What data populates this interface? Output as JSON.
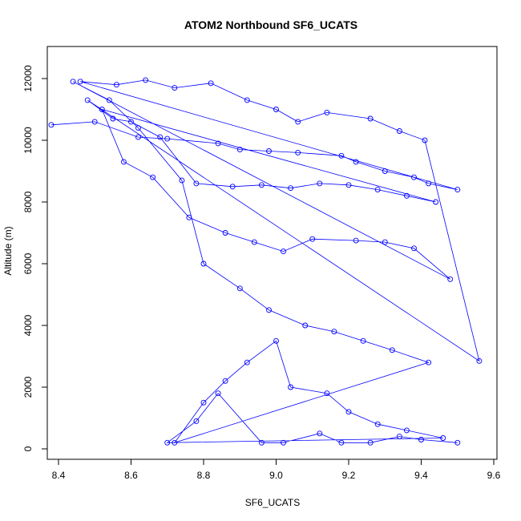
{
  "chart_data": {
    "type": "scatter",
    "title": "ATOM2 Northbound SF6_UCATS",
    "xlabel": "SF6_UCATS",
    "ylabel": "Altitude (m)",
    "xlim": [
      8.35,
      9.6
    ],
    "ylim": [
      0,
      12700
    ],
    "xticks": [
      8.4,
      8.6,
      8.8,
      9.0,
      9.2,
      9.4,
      9.6
    ],
    "xtick_labels": [
      "8.4",
      "8.6",
      "8.8",
      "9.0",
      "9.2",
      "9.4",
      "9.6"
    ],
    "yticks": [
      0,
      2000,
      4000,
      6000,
      8000,
      10000,
      12000
    ],
    "ytick_labels": [
      "0",
      "2000",
      "4000",
      "6000",
      "8000",
      "10000",
      "12000"
    ],
    "grid": false,
    "style": "points-connected",
    "color": "#0000ff",
    "series": [
      {
        "x": [
          8.38,
          8.5,
          8.62,
          8.7,
          8.84,
          8.9,
          8.98,
          9.06,
          9.18,
          9.22,
          9.3,
          9.38,
          9.42,
          9.5,
          8.46,
          8.56,
          8.64,
          8.72,
          8.82,
          8.92,
          9.0,
          9.06,
          9.14,
          9.26,
          9.34,
          9.41,
          9.56,
          8.48,
          8.55,
          8.6,
          8.68,
          8.78,
          8.88,
          8.96,
          9.04,
          9.12,
          9.2,
          9.28,
          9.36,
          9.44,
          8.52,
          8.58,
          8.66,
          8.76,
          8.86,
          8.94,
          9.02,
          9.1,
          9.22,
          9.3,
          9.38,
          9.48,
          8.44,
          8.54,
          8.62,
          8.74,
          8.8,
          8.9,
          8.98,
          9.08,
          9.16,
          9.24,
          9.32,
          9.42,
          8.72,
          8.8,
          8.86,
          8.92,
          9.0,
          9.04,
          9.14,
          9.2,
          9.28,
          9.36,
          9.46,
          8.7,
          8.78,
          8.84,
          8.96,
          9.02,
          9.12,
          9.18,
          9.26,
          9.34,
          9.4,
          9.5
        ],
        "y": [
          10500,
          10600,
          10100,
          10050,
          9900,
          9700,
          9650,
          9600,
          9500,
          9300,
          9000,
          8800,
          8600,
          8400,
          11900,
          11800,
          11950,
          11700,
          11850,
          11300,
          11000,
          10600,
          10900,
          10700,
          10300,
          10000,
          2850,
          11300,
          10700,
          10600,
          10100,
          8600,
          8500,
          8550,
          8450,
          8600,
          8550,
          8400,
          8200,
          8000,
          11000,
          9300,
          8800,
          7500,
          7000,
          6700,
          6400,
          6800,
          6750,
          6700,
          6500,
          5500,
          11900,
          11300,
          10400,
          8700,
          6000,
          5200,
          4500,
          4000,
          3800,
          3500,
          3200,
          2800,
          200,
          1500,
          2200,
          2800,
          3500,
          2000,
          1800,
          1200,
          800,
          600,
          350,
          200,
          900,
          1800,
          200,
          200,
          500,
          200,
          200,
          400,
          300,
          200
        ]
      }
    ]
  }
}
